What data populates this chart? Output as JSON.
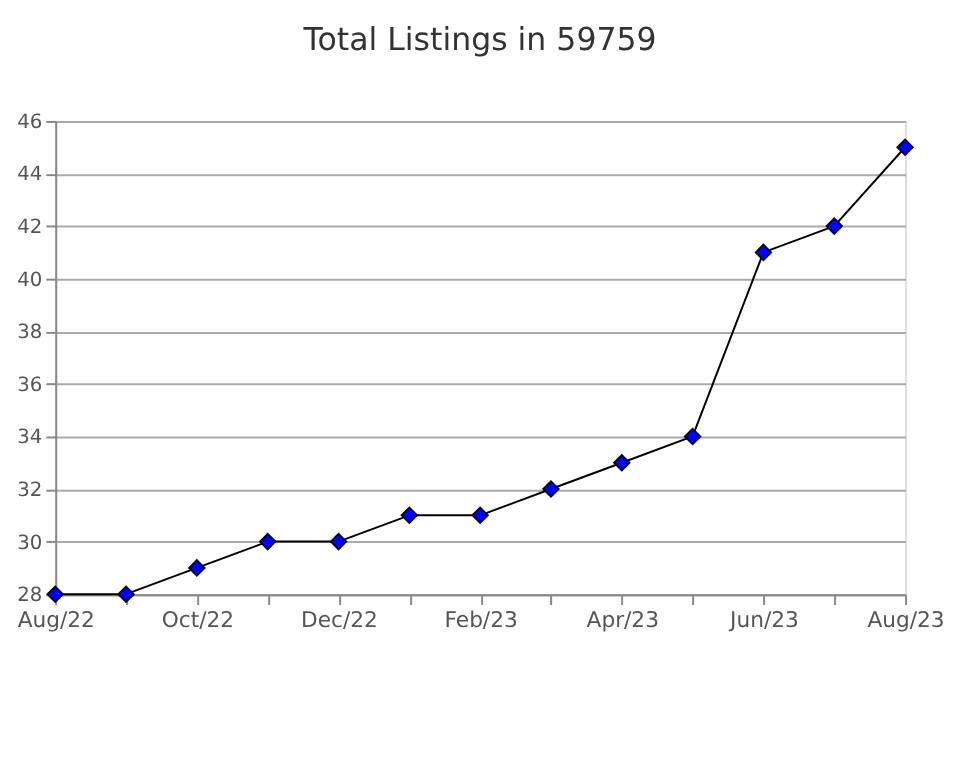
{
  "chart_data": {
    "type": "line",
    "title": "Total Listings in 59759",
    "categories": [
      "Aug/22",
      null,
      "Oct/22",
      null,
      "Dec/22",
      null,
      "Feb/23",
      null,
      "Apr/23",
      null,
      "Jun/23",
      null,
      "Aug/23"
    ],
    "series": [
      {
        "color": "#0000ff",
        "values": [
          28,
          28,
          29,
          30,
          30,
          31,
          31,
          32,
          33,
          34,
          41,
          42,
          45
        ]
      }
    ],
    "ylim": [
      28,
      46
    ],
    "yticks": [
      28,
      30,
      32,
      34,
      36,
      38,
      40,
      42,
      44,
      46
    ],
    "grid": "y",
    "marker": "diamond",
    "line_style": "solid"
  }
}
